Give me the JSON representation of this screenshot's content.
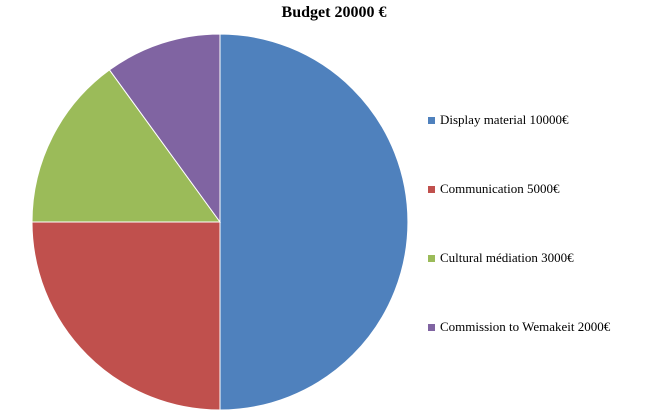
{
  "chart_data": {
    "type": "pie",
    "title": "Budget 20000 €",
    "series": [
      {
        "name": "Display material",
        "value": 10000,
        "label": "Display material 10000€",
        "color": "#4f81bd"
      },
      {
        "name": "Communication",
        "value": 5000,
        "label": "Communication 5000€",
        "color": "#c0504d"
      },
      {
        "name": "Cultural médiation",
        "value": 3000,
        "label": "Cultural médiation 3000€",
        "color": "#9bbb59"
      },
      {
        "name": "Commission to Wemakeit",
        "value": 2000,
        "label": "Commission to Wemakeit 2000€",
        "color": "#8064a2"
      }
    ],
    "legend_position": "right"
  }
}
